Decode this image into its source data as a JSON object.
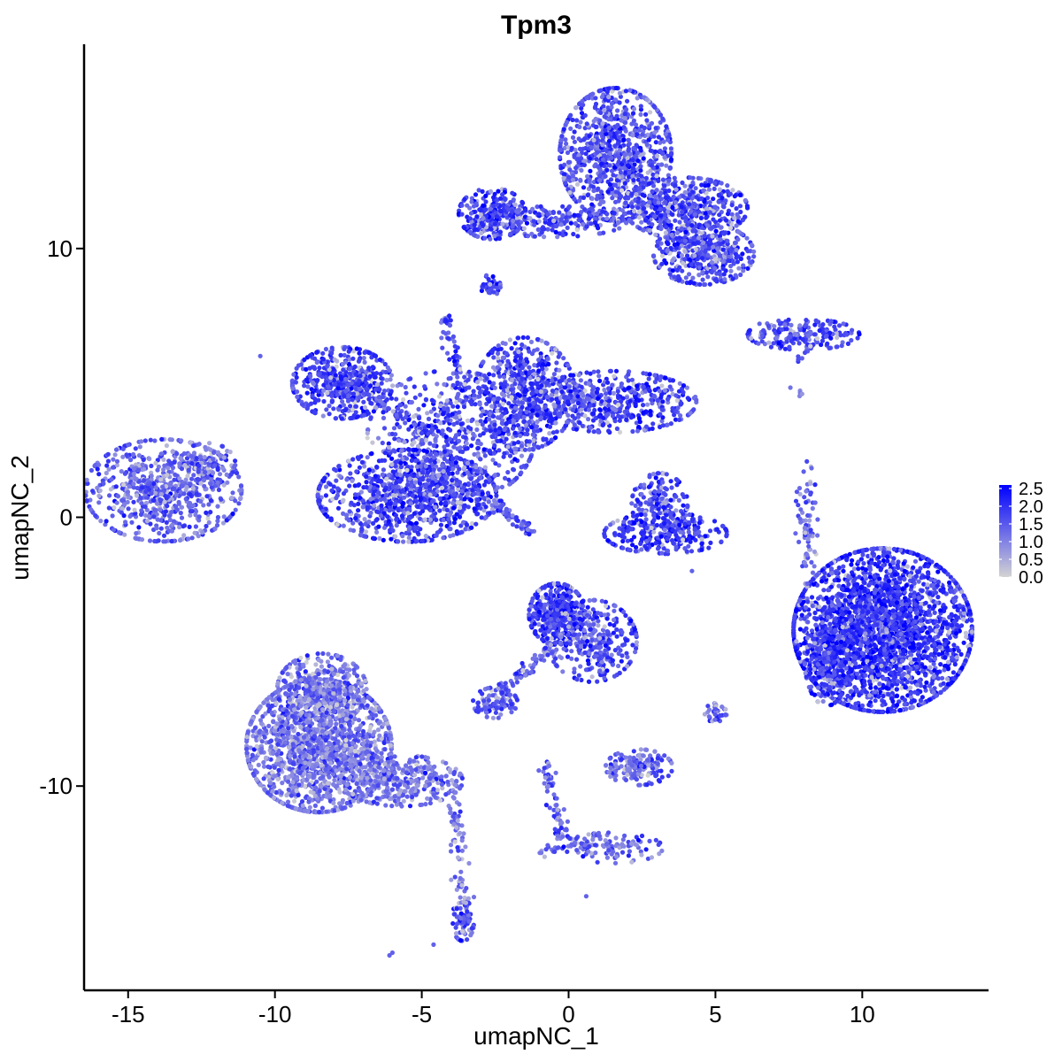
{
  "chart_data": {
    "type": "scatter",
    "title": "Tpm3",
    "xlabel": "umapNC_1",
    "ylabel": "umapNC_2",
    "xlim": [
      -16.5,
      14.3
    ],
    "ylim": [
      -17.6,
      17.6
    ],
    "x_ticks": [
      -15,
      -10,
      -5,
      0,
      5,
      10
    ],
    "x_tick_labels": [
      "-15",
      "-10",
      "-5",
      "0",
      "5",
      "10"
    ],
    "y_ticks": [
      -10,
      0,
      10
    ],
    "y_tick_labels": [
      "-10",
      "0",
      "10"
    ],
    "color_scale": {
      "low_color": "#d3d3d3",
      "high_color": "#0000ff",
      "min": 0.0,
      "max": 2.6,
      "breaks": [
        0.0,
        0.5,
        1.0,
        1.5,
        2.0,
        2.5
      ],
      "break_labels": [
        "0.0",
        "0.5",
        "1.0",
        "1.5",
        "2.0",
        "2.5"
      ],
      "legend_position": "right"
    },
    "clusters": [
      {
        "id": "c_left",
        "cx": -13.8,
        "cy": 1.0,
        "sx": 1.4,
        "sy": 1.0,
        "n": 700,
        "mean": 1.45
      },
      {
        "id": "c_left_arm",
        "cx": -12.3,
        "cy": 2.0,
        "sx": 0.5,
        "sy": 0.4,
        "n": 90,
        "mean": 1.5
      },
      {
        "id": "c_upper_left_head",
        "cx": -7.7,
        "cy": 5.0,
        "sx": 0.9,
        "sy": 0.7,
        "n": 480,
        "mean": 1.8
      },
      {
        "id": "c_center_bulb",
        "cx": -5.5,
        "cy": 0.8,
        "sx": 1.6,
        "sy": 0.9,
        "n": 900,
        "mean": 1.75
      },
      {
        "id": "c_center_body",
        "cx": -4.0,
        "cy": 3.0,
        "sx": 1.5,
        "sy": 1.3,
        "n": 600,
        "mean": 1.7
      },
      {
        "id": "c_center_upper_right",
        "cx": -1.5,
        "cy": 4.6,
        "sx": 0.9,
        "sy": 1.1,
        "n": 550,
        "mean": 1.75
      },
      {
        "id": "c_center_right_arm",
        "cx": 1.5,
        "cy": 4.3,
        "sx": 1.5,
        "sy": 0.6,
        "n": 500,
        "mean": 1.75
      },
      {
        "id": "c_top_head",
        "cx": 1.6,
        "cy": 13.5,
        "sx": 1.0,
        "sy": 1.3,
        "n": 900,
        "mean": 1.7
      },
      {
        "id": "c_top_left_arm",
        "cx": -2.6,
        "cy": 11.3,
        "sx": 0.6,
        "sy": 0.5,
        "n": 260,
        "mean": 1.9
      },
      {
        "id": "c_top_bridge",
        "cx": -0.5,
        "cy": 11.0,
        "sx": 1.3,
        "sy": 0.3,
        "n": 200,
        "mean": 1.75
      },
      {
        "id": "c_top_right_wing",
        "cx": 4.0,
        "cy": 11.5,
        "sx": 1.1,
        "sy": 0.6,
        "n": 450,
        "mean": 1.75
      },
      {
        "id": "c_top_right_low",
        "cx": 4.6,
        "cy": 9.8,
        "sx": 0.9,
        "sy": 0.6,
        "n": 400,
        "mean": 1.7
      },
      {
        "id": "c_top_small",
        "cx": -2.7,
        "cy": 8.6,
        "sx": 0.2,
        "sy": 0.2,
        "n": 40,
        "mean": 1.8
      },
      {
        "id": "c_right_strip",
        "cx": 8.0,
        "cy": 6.8,
        "sx": 1.0,
        "sy": 0.3,
        "n": 180,
        "mean": 1.65
      },
      {
        "id": "c_mid_small",
        "cx": 3.1,
        "cy": 0.5,
        "sx": 0.5,
        "sy": 0.6,
        "n": 160,
        "mean": 1.7
      },
      {
        "id": "c_mid_small_arc",
        "cx": 3.3,
        "cy": -0.6,
        "sx": 1.1,
        "sy": 0.4,
        "n": 260,
        "mean": 1.9
      },
      {
        "id": "c_right_big",
        "cx": 10.7,
        "cy": -4.2,
        "sx": 1.6,
        "sy": 1.6,
        "n": 2600,
        "mean": 1.95
      },
      {
        "id": "c_right_big_left",
        "cx": 8.8,
        "cy": -5.3,
        "sx": 0.4,
        "sy": 0.9,
        "n": 250,
        "mean": 1.9
      },
      {
        "id": "c_right_thin",
        "cx": 8.1,
        "cy": -0.2,
        "sx": 0.2,
        "sy": 1.2,
        "n": 80,
        "mean": 1.3
      },
      {
        "id": "c_mid_lower_head",
        "cx": -0.4,
        "cy": -3.6,
        "sx": 0.5,
        "sy": 0.6,
        "n": 380,
        "mean": 1.85
      },
      {
        "id": "c_mid_lower_body",
        "cx": 0.8,
        "cy": -4.6,
        "sx": 0.8,
        "sy": 0.8,
        "n": 300,
        "mean": 1.7
      },
      {
        "id": "c_mid_lower_small",
        "cx": -2.5,
        "cy": -6.9,
        "sx": 0.4,
        "sy": 0.3,
        "n": 90,
        "mean": 1.6
      },
      {
        "id": "c_lower_left",
        "cx": -8.5,
        "cy": -8.5,
        "sx": 1.3,
        "sy": 1.3,
        "n": 1600,
        "mean": 1.2
      },
      {
        "id": "c_lower_left_top",
        "cx": -8.4,
        "cy": -6.4,
        "sx": 0.8,
        "sy": 0.7,
        "n": 350,
        "mean": 1.2
      },
      {
        "id": "c_lower_left_tail",
        "cx": -5.7,
        "cy": -9.8,
        "sx": 1.1,
        "sy": 0.5,
        "n": 350,
        "mean": 1.25
      },
      {
        "id": "c_lower_mid_blob",
        "cx": 2.4,
        "cy": -9.3,
        "sx": 0.6,
        "sy": 0.35,
        "n": 170,
        "mean": 1.35
      },
      {
        "id": "c_lower_tail_stem",
        "cx": -3.6,
        "cy": -15.0,
        "sx": 0.2,
        "sy": 0.4,
        "n": 70,
        "mean": 1.6
      },
      {
        "id": "c_lower_branch",
        "cx": 1.5,
        "cy": -12.3,
        "sx": 0.9,
        "sy": 0.3,
        "n": 100,
        "mean": 1.4
      },
      {
        "id": "c_right_tiny",
        "cx": 5.0,
        "cy": -7.3,
        "sx": 0.2,
        "sy": 0.2,
        "n": 35,
        "mean": 1.7
      }
    ],
    "trails": [
      {
        "from": [
          -4.2,
          7.5
        ],
        "to": [
          -3.5,
          4.0
        ],
        "n": 70,
        "mean": 1.7
      },
      {
        "from": [
          -2.5,
          0.5
        ],
        "to": [
          -1.2,
          -0.6
        ],
        "n": 60,
        "mean": 1.6
      },
      {
        "from": [
          -1.2,
          -0.6
        ],
        "to": [
          -1.2,
          -0.6
        ],
        "n": 0,
        "mean": 1.6
      },
      {
        "from": [
          -6.2,
          2.7
        ],
        "to": [
          -2.6,
          0.6
        ],
        "n": 50,
        "mean": 1.7
      },
      {
        "from": [
          -0.5,
          -4.8
        ],
        "to": [
          -2.4,
          -6.6
        ],
        "n": 70,
        "mean": 1.5
      },
      {
        "from": [
          -3.9,
          -10.5
        ],
        "to": [
          -3.5,
          -14.6
        ],
        "n": 70,
        "mean": 1.2
      },
      {
        "from": [
          -0.8,
          -9.3
        ],
        "to": [
          -0.2,
          -11.8
        ],
        "n": 60,
        "mean": 1.4
      },
      {
        "from": [
          -0.2,
          -11.8
        ],
        "to": [
          0.8,
          -12.3
        ],
        "n": 30,
        "mean": 1.3
      },
      {
        "from": [
          -0.3,
          -12.0
        ],
        "to": [
          -0.9,
          -12.6
        ],
        "n": 15,
        "mean": 1.3
      },
      {
        "from": [
          1.0,
          -4.5
        ],
        "to": [
          1.2,
          -5.8
        ],
        "n": 30,
        "mean": 1.6
      },
      {
        "from": [
          -4.6,
          3.0
        ],
        "to": [
          -6.7,
          4.4
        ],
        "n": 40,
        "mean": 1.7
      },
      {
        "from": [
          2.8,
          12.0
        ],
        "to": [
          3.5,
          10.3
        ],
        "n": 40,
        "mean": 1.7
      },
      {
        "from": [
          8.3,
          6.5
        ],
        "to": [
          7.8,
          5.8
        ],
        "n": 12,
        "mean": 1.4
      },
      {
        "from": [
          7.6,
          4.8
        ],
        "to": [
          7.9,
          4.5
        ],
        "n": 5,
        "mean": 0.8
      }
    ],
    "isolated_points": [
      [
        -10.5,
        6.0
      ],
      [
        -6.1,
        -16.3
      ],
      [
        -6.0,
        -16.2
      ],
      [
        0.6,
        -14.1
      ],
      [
        4.2,
        -2.0
      ],
      [
        6.5,
        7.2
      ],
      [
        3.2,
        1.3
      ],
      [
        -4.6,
        -15.9
      ],
      [
        2.0,
        -5.2
      ],
      [
        -2.8,
        9.0
      ]
    ]
  }
}
